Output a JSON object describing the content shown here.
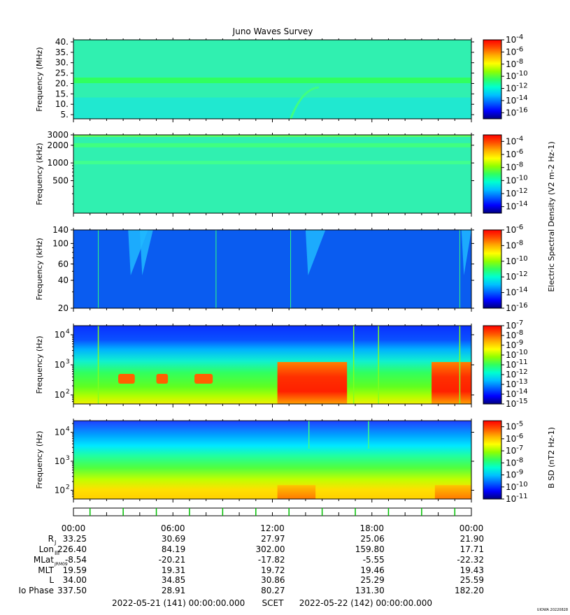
{
  "title": "Juno Waves Survey",
  "colors": {
    "scale": [
      "#00007f",
      "#0000ff",
      "#0060ff",
      "#00c0ff",
      "#00ffd0",
      "#30ff60",
      "#90ff00",
      "#ffff00",
      "#ffb000",
      "#ff5000",
      "#ff0000"
    ],
    "bg_top": "#28f0b8"
  },
  "chart_data": [
    {
      "type": "heatmap",
      "panel": 1,
      "ylabel": "Frequency (MHz)",
      "yscale": "linear",
      "ylim": [
        3,
        41
      ],
      "yticks": [
        "5.",
        "10.",
        "15.",
        "20.",
        "25.",
        "30.",
        "35.",
        "40."
      ],
      "ytick_values": [
        5,
        10,
        15,
        20,
        25,
        30,
        35,
        40
      ],
      "colorbar": {
        "ticks": [
          "10-4",
          "10-6",
          "10-8",
          "10-10",
          "10-12",
          "10-14",
          "10-16"
        ],
        "exp": [
          -4,
          -6,
          -8,
          -10,
          -12,
          -14,
          -16
        ],
        "range": [
          -4,
          -17
        ]
      }
    },
    {
      "type": "heatmap",
      "panel": 2,
      "ylabel": "Frequency (kHz)",
      "yscale": "log",
      "ylim": [
        140,
        3000
      ],
      "yticks": [
        "3000",
        "2000",
        "1000",
        "500"
      ],
      "ytick_values": [
        3000,
        2000,
        1000,
        500
      ],
      "colorbar": {
        "ticks": [
          "10-4",
          "10-6",
          "10-8",
          "10-10",
          "10-12",
          "10-14"
        ],
        "exp": [
          -4,
          -6,
          -8,
          -10,
          -12,
          -14
        ],
        "range": [
          -3,
          -15
        ]
      }
    },
    {
      "type": "heatmap",
      "panel": 3,
      "ylabel": "Frequency (kHz)",
      "yscale": "log",
      "ylim": [
        20,
        140
      ],
      "yticks": [
        "140",
        "100",
        "60",
        "40",
        "20"
      ],
      "ytick_values": [
        140,
        100,
        60,
        40,
        20
      ],
      "colorbar": {
        "ticks": [
          "10-6",
          "10-8",
          "10-10",
          "10-12",
          "10-14",
          "10-16"
        ],
        "exp": [
          -6,
          -8,
          -10,
          -12,
          -14,
          -16
        ],
        "range": [
          -6,
          -16
        ]
      }
    },
    {
      "type": "heatmap",
      "panel": 4,
      "ylabel": "Frequency (Hz)",
      "yscale": "log",
      "ylim": [
        50,
        20000
      ],
      "yticks": [
        "10",
        "10",
        "10"
      ],
      "ytick_exp": [
        "4",
        "3",
        "2"
      ],
      "ytick_values": [
        10000,
        1000,
        100
      ],
      "colorbar": {
        "ticks": [
          "10-7",
          "10-8",
          "10-9",
          "10-10",
          "10-11",
          "10-12",
          "10-13",
          "10-14",
          "10-15"
        ],
        "exp": [
          -7,
          -8,
          -9,
          -10,
          -11,
          -12,
          -13,
          -14,
          -15
        ],
        "range": [
          -7,
          -15
        ]
      }
    },
    {
      "type": "heatmap",
      "panel": 5,
      "ylabel": "Frequency (Hz)",
      "yscale": "log",
      "ylim": [
        50,
        25000
      ],
      "yticks": [
        "10",
        "10",
        "10"
      ],
      "ytick_exp": [
        "4",
        "3",
        "2"
      ],
      "ytick_values": [
        10000,
        1000,
        100
      ],
      "colorbar": {
        "ticks": [
          "10-5",
          "10-6",
          "10-7",
          "10-8",
          "10-9",
          "10-10",
          "10-11"
        ],
        "exp": [
          -5,
          -6,
          -7,
          -8,
          -9,
          -10,
          -11
        ],
        "range": [
          -4.5,
          -11
        ]
      }
    }
  ],
  "colorbar_labels": {
    "electric": "Electric Spectral Density (V2 m-2 Hz-1)",
    "magnetic": "B SD (nT2 Hz-1)"
  },
  "time_axis": {
    "ticks": [
      "00:00",
      "06:00",
      "12:00",
      "18:00",
      "00:00"
    ],
    "hours": [
      0,
      6,
      12,
      18,
      24
    ]
  },
  "ephemeris": {
    "rows": [
      {
        "label": "RJ",
        "values": [
          "33.25",
          "30.69",
          "27.97",
          "25.06",
          "21.90"
        ]
      },
      {
        "label": "LonIII",
        "values": [
          "226.40",
          "84.19",
          "302.00",
          "159.80",
          "17.71"
        ]
      },
      {
        "label": "MLatJRM09",
        "values": [
          "-8.54",
          "-20.21",
          "-17.82",
          "-5.55",
          "-22.32"
        ]
      },
      {
        "label": "MLT",
        "values": [
          "19.59",
          "19.31",
          "19.72",
          "19.46",
          "19.43"
        ]
      },
      {
        "label": "L",
        "values": [
          "34.00",
          "34.85",
          "30.86",
          "25.29",
          "25.59"
        ]
      },
      {
        "label": "Io Phase",
        "values": [
          "337.50",
          "28.91",
          "80.27",
          "131.30",
          "182.20"
        ]
      }
    ]
  },
  "footer": {
    "start": "2022-05-21 (141) 00:00:00.000",
    "scet": "SCET",
    "end": "2022-05-22 (142) 00:00:00.000",
    "credit": "UIOWA 20220828"
  }
}
